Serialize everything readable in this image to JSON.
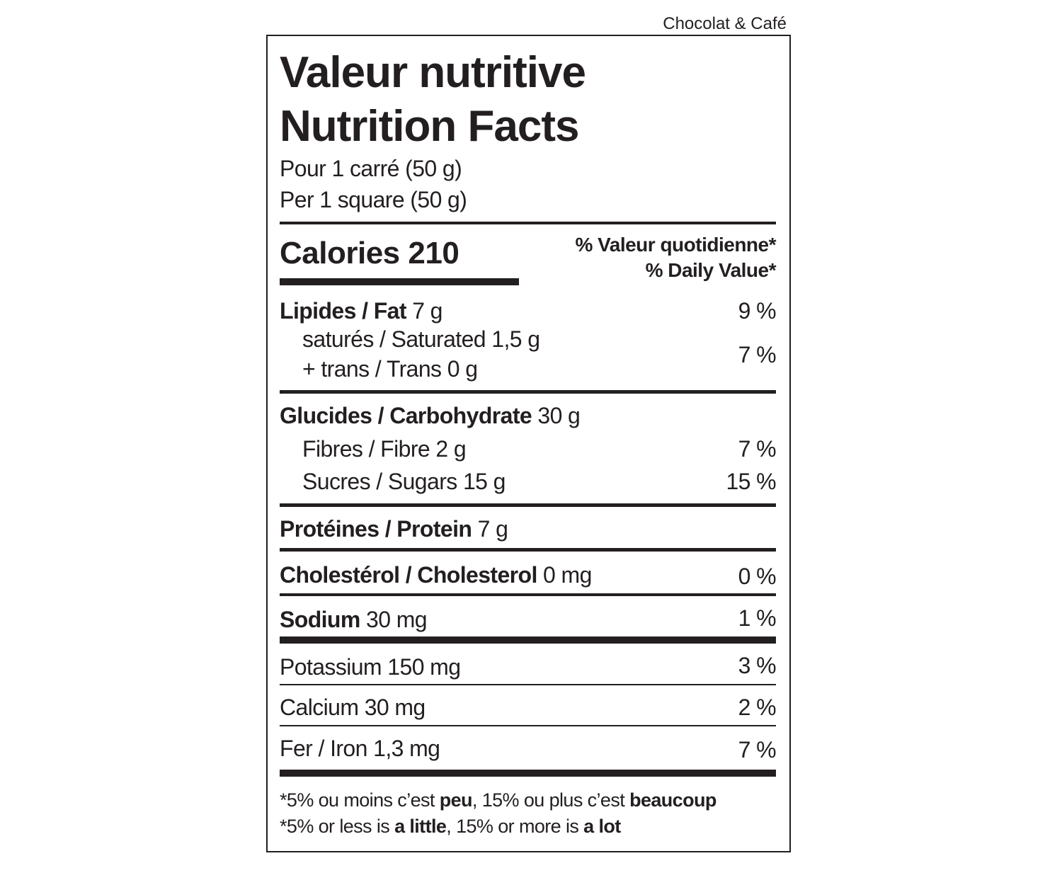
{
  "product_name": "Chocolat & Café",
  "title_fr": "Valeur nutritive",
  "title_en": "Nutrition Facts",
  "serving_fr": "Pour 1 carré (50 g)",
  "serving_en": "Per 1 square (50 g)",
  "calories_label": "Calories",
  "calories_value": "210",
  "dv_header_fr": "% Valeur quotidienne*",
  "dv_header_en": "% Daily Value*",
  "nutrients": {
    "fat": {
      "label": "Lipides / Fat",
      "amount": "7 g",
      "dv": "9 %"
    },
    "saturated": {
      "label": "saturés / Saturated",
      "amount": "1,5 g"
    },
    "trans": {
      "label": "+ trans / Trans",
      "amount": "0 g"
    },
    "sat_trans_dv": "7 %",
    "carbohydrate": {
      "label": "Glucides / Carbohydrate",
      "amount": "30 g"
    },
    "fibre": {
      "label": "Fibres / Fibre",
      "amount": "2 g",
      "dv": "7 %"
    },
    "sugars": {
      "label": "Sucres / Sugars",
      "amount": "15 g",
      "dv": "15 %"
    },
    "protein": {
      "label": "Protéines / Protein",
      "amount": "7 g"
    },
    "cholesterol": {
      "label": "Cholestérol / Cholesterol",
      "amount": "0 mg",
      "dv": "0 %"
    },
    "sodium": {
      "label": "Sodium",
      "amount": "30 mg",
      "dv": "1 %"
    },
    "potassium": {
      "label": "Potassium",
      "amount": "150 mg",
      "dv": "3 %"
    },
    "calcium": {
      "label": "Calcium",
      "amount": "30 mg",
      "dv": "2 %"
    },
    "iron": {
      "label": "Fer / Iron",
      "amount": "1,3 mg",
      "dv": "7 %"
    }
  },
  "footnote": {
    "fr": {
      "p1": "*5% ou moins c’est ",
      "b1": "peu",
      "p2": ", 15% ou plus c’est ",
      "b2": "beaucoup"
    },
    "en": {
      "p1": "*5% or less is ",
      "b1": "a little",
      "p2": ", 15% or more is ",
      "b2": "a lot"
    }
  }
}
